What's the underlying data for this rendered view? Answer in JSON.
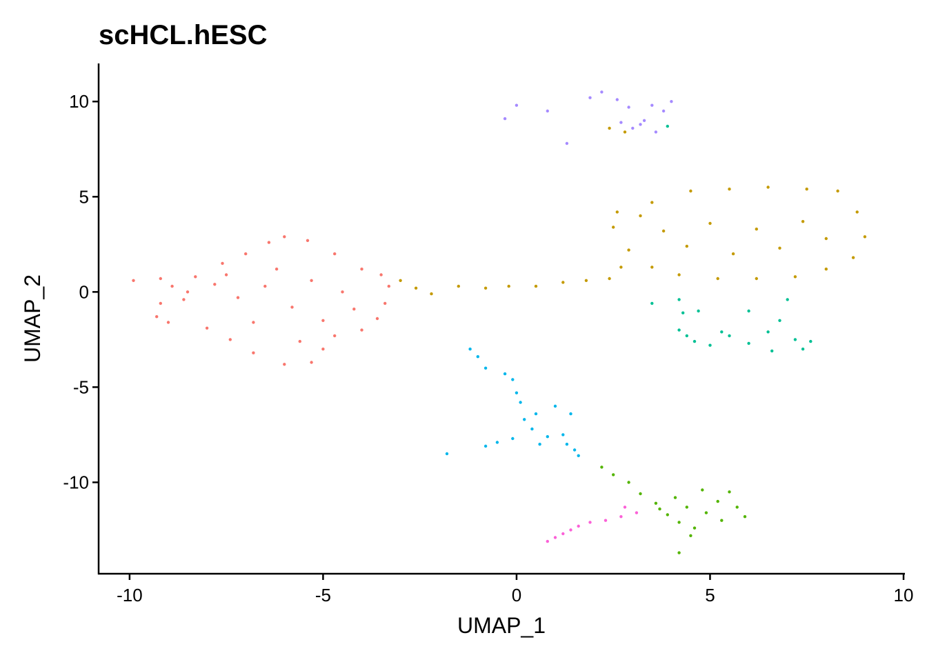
{
  "chart_data": {
    "type": "scatter",
    "title": "scHCL.hESC",
    "xlabel": "UMAP_1",
    "ylabel": "UMAP_2",
    "xlim": [
      -10.8,
      10.0
    ],
    "ylim": [
      -14.8,
      12.0
    ],
    "x_ticks": [
      -10,
      -5,
      0,
      5,
      10
    ],
    "x_tick_labels": [
      "-10",
      "-5",
      "0",
      "5",
      "10"
    ],
    "y_ticks": [
      -10,
      -5,
      0,
      5,
      10
    ],
    "y_tick_labels": [
      "-10",
      "-5",
      "0",
      "5",
      "10"
    ],
    "grid": false,
    "legend": "none",
    "series": [
      {
        "color": "#F8766D",
        "points": [
          [
            -9.9,
            0.6
          ],
          [
            -9.2,
            0.7
          ],
          [
            -8.3,
            0.8
          ],
          [
            -7.6,
            1.5
          ],
          [
            -7.0,
            2.0
          ],
          [
            -6.4,
            2.6
          ],
          [
            -6.0,
            2.9
          ],
          [
            -5.4,
            2.7
          ],
          [
            -4.7,
            2.0
          ],
          [
            -4.0,
            1.2
          ],
          [
            -3.5,
            0.9
          ],
          [
            -3.3,
            0.3
          ],
          [
            -3.4,
            -0.6
          ],
          [
            -3.6,
            -1.4
          ],
          [
            -4.0,
            -2.0
          ],
          [
            -4.7,
            -2.3
          ],
          [
            -5.0,
            -3.0
          ],
          [
            -5.3,
            -3.7
          ],
          [
            -6.0,
            -3.8
          ],
          [
            -6.8,
            -3.2
          ],
          [
            -7.4,
            -2.5
          ],
          [
            -8.0,
            -1.9
          ],
          [
            -9.0,
            -1.6
          ],
          [
            -9.3,
            -1.3
          ],
          [
            -9.2,
            -0.6
          ],
          [
            -8.6,
            -0.4
          ],
          [
            -8.5,
            0.0
          ],
          [
            -8.9,
            0.3
          ],
          [
            -7.8,
            0.4
          ],
          [
            -7.2,
            -0.3
          ],
          [
            -6.5,
            0.3
          ],
          [
            -6.2,
            1.2
          ],
          [
            -5.8,
            -0.8
          ],
          [
            -5.3,
            0.6
          ],
          [
            -5.0,
            -1.5
          ],
          [
            -4.5,
            0.0
          ],
          [
            -4.2,
            -0.9
          ],
          [
            -6.8,
            -1.6
          ],
          [
            -5.6,
            -2.6
          ],
          [
            -7.5,
            0.9
          ]
        ]
      },
      {
        "color": "#C49A00",
        "points": [
          [
            -3.0,
            0.6
          ],
          [
            -2.6,
            0.2
          ],
          [
            -2.2,
            -0.1
          ],
          [
            -1.5,
            0.3
          ],
          [
            -0.8,
            0.2
          ],
          [
            -0.2,
            0.3
          ],
          [
            0.5,
            0.3
          ],
          [
            1.2,
            0.5
          ],
          [
            1.8,
            0.6
          ],
          [
            2.4,
            0.7
          ],
          [
            2.7,
            1.3
          ],
          [
            2.9,
            2.2
          ],
          [
            2.5,
            3.4
          ],
          [
            2.6,
            4.2
          ],
          [
            3.5,
            4.7
          ],
          [
            4.5,
            5.3
          ],
          [
            5.5,
            5.4
          ],
          [
            6.5,
            5.5
          ],
          [
            7.5,
            5.4
          ],
          [
            8.3,
            5.3
          ],
          [
            8.8,
            4.2
          ],
          [
            9.0,
            2.9
          ],
          [
            8.7,
            1.8
          ],
          [
            8.0,
            1.2
          ],
          [
            7.2,
            0.8
          ],
          [
            6.2,
            0.7
          ],
          [
            5.2,
            0.7
          ],
          [
            4.2,
            0.9
          ],
          [
            3.5,
            1.3
          ],
          [
            3.8,
            3.2
          ],
          [
            5.0,
            3.6
          ],
          [
            6.2,
            3.3
          ],
          [
            7.4,
            3.7
          ],
          [
            8.0,
            2.8
          ],
          [
            4.4,
            2.4
          ],
          [
            5.6,
            2.0
          ],
          [
            6.8,
            2.3
          ],
          [
            3.2,
            4.0
          ],
          [
            2.4,
            8.6
          ],
          [
            2.8,
            8.4
          ]
        ]
      },
      {
        "color": "#00C094",
        "points": [
          [
            3.5,
            -0.6
          ],
          [
            4.2,
            -0.4
          ],
          [
            4.3,
            -1.1
          ],
          [
            4.7,
            -1.0
          ],
          [
            6.0,
            -1.0
          ],
          [
            7.0,
            -0.4
          ],
          [
            4.2,
            -2.0
          ],
          [
            4.6,
            -2.6
          ],
          [
            5.0,
            -2.8
          ],
          [
            5.5,
            -2.3
          ],
          [
            6.0,
            -2.7
          ],
          [
            6.5,
            -2.1
          ],
          [
            6.8,
            -1.5
          ],
          [
            7.2,
            -2.5
          ],
          [
            7.6,
            -2.6
          ],
          [
            7.4,
            -3.0
          ],
          [
            6.6,
            -3.1
          ],
          [
            5.3,
            -2.1
          ],
          [
            4.4,
            -2.3
          ],
          [
            3.9,
            8.7
          ]
        ]
      },
      {
        "color": "#53B400",
        "points": [
          [
            2.2,
            -9.2
          ],
          [
            2.5,
            -9.6
          ],
          [
            2.9,
            -10.0
          ],
          [
            3.2,
            -10.6
          ],
          [
            3.6,
            -11.1
          ],
          [
            3.9,
            -11.7
          ],
          [
            4.2,
            -12.1
          ],
          [
            4.6,
            -12.4
          ],
          [
            4.9,
            -11.6
          ],
          [
            5.2,
            -11.0
          ],
          [
            5.5,
            -10.5
          ],
          [
            5.7,
            -11.3
          ],
          [
            5.3,
            -12.0
          ],
          [
            4.4,
            -11.3
          ],
          [
            4.8,
            -10.4
          ],
          [
            4.1,
            -10.8
          ],
          [
            4.5,
            -12.8
          ],
          [
            4.2,
            -13.7
          ],
          [
            5.9,
            -11.8
          ],
          [
            3.7,
            -11.4
          ]
        ]
      },
      {
        "color": "#00B6EB",
        "points": [
          [
            -1.2,
            -3.0
          ],
          [
            -1.0,
            -3.4
          ],
          [
            -0.8,
            -4.0
          ],
          [
            -0.3,
            -4.3
          ],
          [
            -0.1,
            -4.6
          ],
          [
            0.0,
            -5.3
          ],
          [
            0.1,
            -5.8
          ],
          [
            0.2,
            -6.7
          ],
          [
            0.4,
            -7.2
          ],
          [
            0.8,
            -7.6
          ],
          [
            1.2,
            -7.5
          ],
          [
            1.5,
            -8.3
          ],
          [
            1.6,
            -8.6
          ],
          [
            1.3,
            -8.0
          ],
          [
            0.6,
            -8.0
          ],
          [
            -0.1,
            -7.7
          ],
          [
            -0.5,
            -7.9
          ],
          [
            -0.8,
            -8.1
          ],
          [
            0.5,
            -6.4
          ],
          [
            1.0,
            -6.0
          ],
          [
            1.4,
            -6.4
          ],
          [
            -1.8,
            -8.5
          ]
        ]
      },
      {
        "color": "#A58AFF",
        "points": [
          [
            -0.3,
            9.1
          ],
          [
            0.0,
            9.8
          ],
          [
            0.8,
            9.5
          ],
          [
            1.3,
            7.8
          ],
          [
            1.9,
            10.2
          ],
          [
            2.2,
            10.5
          ],
          [
            2.6,
            10.1
          ],
          [
            2.9,
            9.7
          ],
          [
            3.0,
            8.6
          ],
          [
            3.3,
            9.0
          ],
          [
            3.6,
            8.4
          ],
          [
            3.8,
            9.5
          ],
          [
            4.0,
            10.0
          ],
          [
            3.5,
            9.8
          ],
          [
            3.2,
            8.8
          ],
          [
            2.7,
            8.9
          ]
        ]
      },
      {
        "color": "#FB61D7",
        "points": [
          [
            0.8,
            -13.1
          ],
          [
            1.0,
            -12.9
          ],
          [
            1.2,
            -12.7
          ],
          [
            1.4,
            -12.5
          ],
          [
            1.6,
            -12.3
          ],
          [
            1.9,
            -12.1
          ],
          [
            2.3,
            -12.0
          ],
          [
            2.7,
            -11.8
          ],
          [
            3.1,
            -11.6
          ],
          [
            2.8,
            -11.3
          ]
        ]
      }
    ]
  }
}
